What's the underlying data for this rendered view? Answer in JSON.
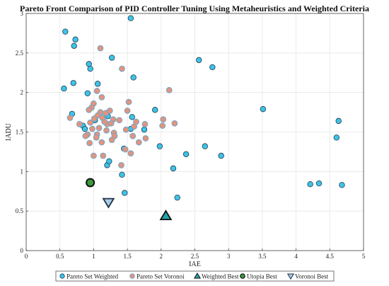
{
  "chart_data": {
    "type": "scatter",
    "title": "Pareto Front Comparison of PID Controller Tuning Using Metaheuristics and Weighted Criteria",
    "xlabel": "IAE",
    "ylabel": "IADU",
    "xlim": [
      0,
      5
    ],
    "ylim": [
      0,
      3
    ],
    "xticks": [
      "0",
      "0.5",
      "1",
      "1.5",
      "2",
      "2.5",
      "3",
      "3.5",
      "4",
      "4.5",
      "5"
    ],
    "yticks": [
      "0",
      "0.5",
      "1",
      "1.5",
      "2",
      "2.5",
      "3"
    ],
    "grid": true,
    "legend_position": "bottom",
    "colors": {
      "weighted_fill": "#3ec3e8",
      "voronoi_fill": "#e8927a",
      "weighted_best_fill": "#26a3a3",
      "utopia_fill": "#3c9b3c",
      "voronoi_best_fill": "#aacde6",
      "marker_stroke": "#1f3a4a"
    },
    "series": [
      {
        "name": "Pareto Set Weighted",
        "marker": "circle",
        "points": [
          [
            0.58,
            2.77
          ],
          [
            0.73,
            2.67
          ],
          [
            0.71,
            2.59
          ],
          [
            1.55,
            2.94
          ],
          [
            0.93,
            2.36
          ],
          [
            0.95,
            2.3
          ],
          [
            1.27,
            2.44
          ],
          [
            1.59,
            2.19
          ],
          [
            0.56,
            2.05
          ],
          [
            0.7,
            2.12
          ],
          [
            0.91,
            1.99
          ],
          [
            1.06,
            2.11
          ],
          [
            0.68,
            1.73
          ],
          [
            0.84,
            1.58
          ],
          [
            0.87,
            1.54
          ],
          [
            1.02,
            1.65
          ],
          [
            1.21,
            1.7
          ],
          [
            1.57,
            1.69
          ],
          [
            1.55,
            1.54
          ],
          [
            1.75,
            1.53
          ],
          [
            1.91,
            1.78
          ],
          [
            2.56,
            2.41
          ],
          [
            2.76,
            2.32
          ],
          [
            3.51,
            1.79
          ],
          [
            4.63,
            1.64
          ],
          [
            4.6,
            1.43
          ],
          [
            2.65,
            1.32
          ],
          [
            2.89,
            1.2
          ],
          [
            2.37,
            1.22
          ],
          [
            1.98,
            1.32
          ],
          [
            1.45,
            1.29
          ],
          [
            1.2,
            1.08
          ],
          [
            1.23,
            1.13
          ],
          [
            1.42,
            0.96
          ],
          [
            2.18,
            1.04
          ],
          [
            1.46,
            0.73
          ],
          [
            2.24,
            0.67
          ],
          [
            4.21,
            0.84
          ],
          [
            4.34,
            0.85
          ],
          [
            4.68,
            0.83
          ]
        ]
      },
      {
        "name": "Pareto Set Voronoi",
        "marker": "circle",
        "points": [
          [
            1.1,
            2.56
          ],
          [
            1.42,
            2.3
          ],
          [
            2.12,
            2.03
          ],
          [
            1.05,
            2.02
          ],
          [
            1.12,
            1.94
          ],
          [
            1.52,
            1.88
          ],
          [
            1.0,
            1.86
          ],
          [
            0.97,
            1.81
          ],
          [
            0.93,
            1.78
          ],
          [
            1.29,
            1.66
          ],
          [
            1.5,
            1.77
          ],
          [
            1.1,
            1.75
          ],
          [
            1.18,
            1.74
          ],
          [
            1.24,
            1.77
          ],
          [
            1.38,
            1.65
          ],
          [
            1.63,
            1.63
          ],
          [
            2.03,
            1.66
          ],
          [
            2.2,
            1.61
          ],
          [
            1.76,
            1.6
          ],
          [
            1.6,
            1.57
          ],
          [
            2.02,
            1.58
          ],
          [
            1.08,
            1.55
          ],
          [
            1.19,
            1.52
          ],
          [
            1.3,
            1.49
          ],
          [
            1.2,
            1.6
          ],
          [
            1.16,
            1.63
          ],
          [
            1.06,
            1.71
          ],
          [
            1.01,
            1.67
          ],
          [
            1.13,
            1.68
          ],
          [
            1.26,
            1.61
          ],
          [
            0.95,
            1.62
          ],
          [
            0.98,
            1.54
          ],
          [
            0.91,
            1.47
          ],
          [
            1.48,
            1.53
          ],
          [
            1.58,
            1.45
          ],
          [
            1.31,
            1.45
          ],
          [
            1.05,
            1.47
          ],
          [
            1.67,
            1.37
          ],
          [
            1.77,
            1.42
          ],
          [
            1.04,
            1.43
          ],
          [
            1.27,
            1.4
          ],
          [
            0.79,
            1.6
          ],
          [
            0.88,
            1.45
          ],
          [
            0.65,
            1.68
          ],
          [
            0.94,
            1.36
          ],
          [
            1.12,
            1.37
          ],
          [
            1.47,
            1.28
          ],
          [
            1.55,
            1.23
          ],
          [
            1.0,
            1.2
          ],
          [
            1.14,
            1.2
          ],
          [
            1.41,
            1.08
          ]
        ]
      },
      {
        "name": "Weighted Best",
        "marker": "triangle-up",
        "points": [
          [
            2.07,
            0.44
          ]
        ]
      },
      {
        "name": "Utopia Best",
        "marker": "circle-large",
        "points": [
          [
            0.95,
            0.86
          ]
        ]
      },
      {
        "name": "Voronoi Best",
        "marker": "triangle-down",
        "points": [
          [
            1.22,
            0.61
          ]
        ]
      }
    ]
  }
}
